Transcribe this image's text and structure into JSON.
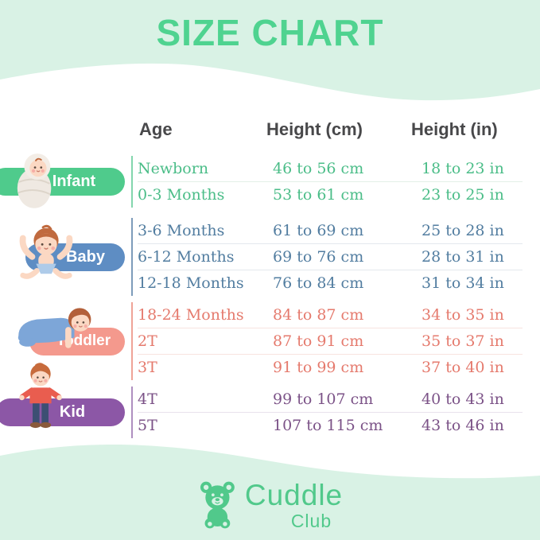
{
  "page": {
    "title": "SIZE CHART",
    "background_mint": "#d9f2e5",
    "card_background": "#ffffff",
    "title_color": "#4fd390",
    "header_text_color": "#48484a"
  },
  "table": {
    "headers": {
      "age": "Age",
      "height_cm": "Height (cm)",
      "height_in": "Height (in)"
    }
  },
  "groups": [
    {
      "label": "Infant",
      "character_icon": "swaddled-infant-illustration",
      "badge_color": "#4fcb8c",
      "text_color": "#4bbd88",
      "line_color": "#83d6ad",
      "divider_color": "#e3efe7",
      "rows": [
        {
          "age": "Newborn",
          "cm": "46 to 56 cm",
          "in": "18 to 23 in"
        },
        {
          "age": "0-3 Months",
          "cm": "53 to 61 cm",
          "in": "23 to 25 in"
        }
      ]
    },
    {
      "label": "Baby",
      "character_icon": "baby-arms-up-illustration",
      "badge_color": "#5e8dc3",
      "text_color": "#527da0",
      "line_color": "#7d9cba",
      "divider_color": "#e3e8ed",
      "rows": [
        {
          "age": "3-6 Months",
          "cm": "61 to 69 cm",
          "in": "25 to 28 in"
        },
        {
          "age": "6-12 Months",
          "cm": "69 to 76 cm",
          "in": "28 to 31 in"
        },
        {
          "age": "12-18 Months",
          "cm": "76 to 84 cm",
          "in": "31 to 34 in"
        }
      ]
    },
    {
      "label": "Toddler",
      "character_icon": "crawling-toddler-illustration",
      "badge_color": "#f4998d",
      "text_color": "#e57a6d",
      "line_color": "#efa397",
      "divider_color": "#f8e3df",
      "rows": [
        {
          "age": "18-24 Months",
          "cm": "84 to 87 cm",
          "in": "34 to 35 in"
        },
        {
          "age": "2T",
          "cm": "87 to 91 cm",
          "in": "35 to 37 in"
        },
        {
          "age": "3T",
          "cm": "91 to 99 cm",
          "in": "37 to 40 in"
        }
      ]
    },
    {
      "label": "Kid",
      "character_icon": "standing-kid-illustration",
      "badge_color": "#8c57a6",
      "text_color": "#7b5287",
      "line_color": "#af8fc0",
      "divider_color": "#e9e2ed",
      "rows": [
        {
          "age": "4T",
          "cm": "99 to 107 cm",
          "in": "40 to 43 in"
        },
        {
          "age": "5T",
          "cm": "107 to 115 cm",
          "in": "43 to 46 in"
        }
      ]
    }
  ],
  "logo": {
    "name_top": "Cuddle",
    "name_bottom": "Club",
    "color": "#51c98b",
    "icon": "teddy-bear-icon"
  },
  "chart_data": {
    "type": "table",
    "title": "SIZE CHART",
    "columns": [
      "Age",
      "Height (cm)",
      "Height (in)"
    ],
    "row_groups": [
      {
        "group": "Infant",
        "rows": [
          [
            "Newborn",
            "46 to 56 cm",
            "18 to 23 in"
          ],
          [
            "0-3 Months",
            "53 to 61 cm",
            "23 to 25 in"
          ]
        ]
      },
      {
        "group": "Baby",
        "rows": [
          [
            "3-6 Months",
            "61 to 69 cm",
            "25 to 28 in"
          ],
          [
            "6-12 Months",
            "69 to 76 cm",
            "28 to 31 in"
          ],
          [
            "12-18 Months",
            "76 to 84 cm",
            "31 to 34 in"
          ]
        ]
      },
      {
        "group": "Toddler",
        "rows": [
          [
            "18-24 Months",
            "84 to 87 cm",
            "34 to 35 in"
          ],
          [
            "2T",
            "87 to 91 cm",
            "35 to 37 in"
          ],
          [
            "3T",
            "91 to 99 cm",
            "37 to 40 in"
          ]
        ]
      },
      {
        "group": "Kid",
        "rows": [
          [
            "4T",
            "99 to 107 cm",
            "40 to 43 in"
          ],
          [
            "5T",
            "107 to 115 cm",
            "43 to 46 in"
          ]
        ]
      }
    ]
  }
}
